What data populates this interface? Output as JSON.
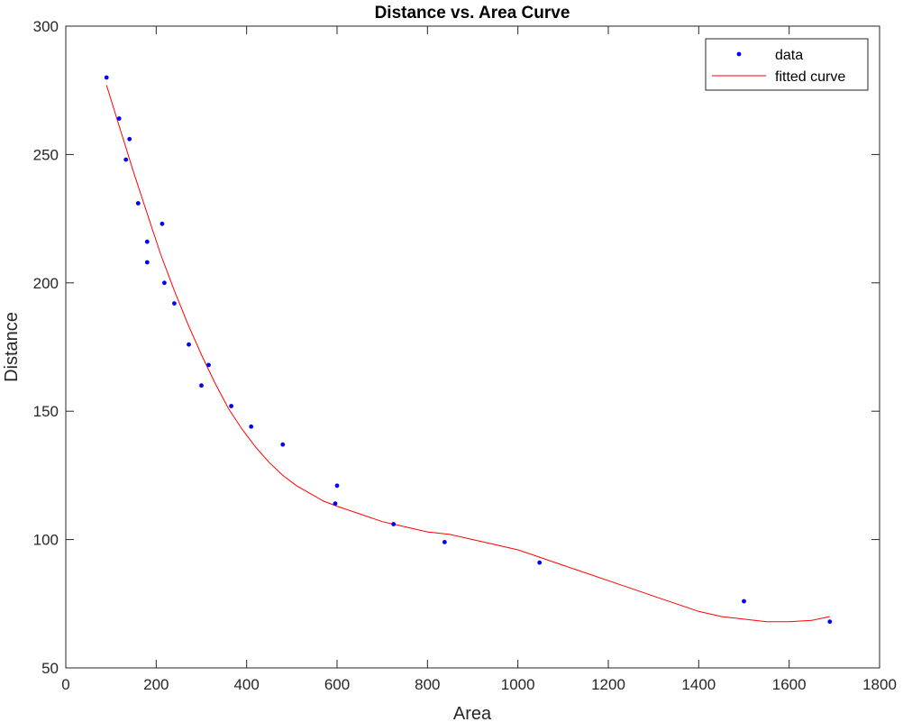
{
  "chart_data": {
    "type": "scatter",
    "title": "Distance vs. Area Curve",
    "xlabel": "Area",
    "ylabel": "Distance",
    "xlim": [
      0,
      1800
    ],
    "ylim": [
      50,
      300
    ],
    "xticks": [
      0,
      200,
      400,
      600,
      800,
      1000,
      1200,
      1400,
      1600,
      1800
    ],
    "yticks": [
      50,
      100,
      150,
      200,
      250,
      300
    ],
    "grid": false,
    "legend_position": "top-right",
    "series": [
      {
        "name": "data",
        "kind": "points",
        "color": "#0000ff",
        "x": [
          90,
          118,
          133,
          141,
          160,
          180,
          180,
          213,
          218,
          240,
          272,
          300,
          316,
          366,
          410,
          480,
          596,
          600,
          725,
          838,
          1048,
          1500,
          1690
        ],
        "y": [
          280,
          264,
          248,
          256,
          231,
          216,
          208,
          223,
          200,
          192,
          176,
          160,
          168,
          152,
          144,
          137,
          114,
          121,
          106,
          99,
          91,
          76,
          68
        ]
      },
      {
        "name": "fitted curve",
        "kind": "line",
        "color": "#ff0000",
        "x": [
          90,
          120,
          150,
          180,
          210,
          240,
          270,
          300,
          330,
          360,
          390,
          420,
          450,
          480,
          510,
          540,
          570,
          600,
          650,
          700,
          750,
          800,
          850,
          900,
          950,
          1000,
          1050,
          1100,
          1150,
          1200,
          1250,
          1300,
          1350,
          1400,
          1450,
          1500,
          1550,
          1600,
          1650,
          1690
        ],
        "y": [
          277,
          260,
          243,
          227,
          211,
          197,
          184,
          172,
          161,
          151,
          143,
          136,
          130,
          125,
          121,
          118,
          115,
          113,
          110,
          107,
          105,
          103,
          102,
          100,
          98,
          96,
          93,
          90,
          87,
          84,
          81,
          78,
          75,
          72,
          70,
          69,
          68,
          68,
          68.5,
          70
        ]
      }
    ]
  }
}
